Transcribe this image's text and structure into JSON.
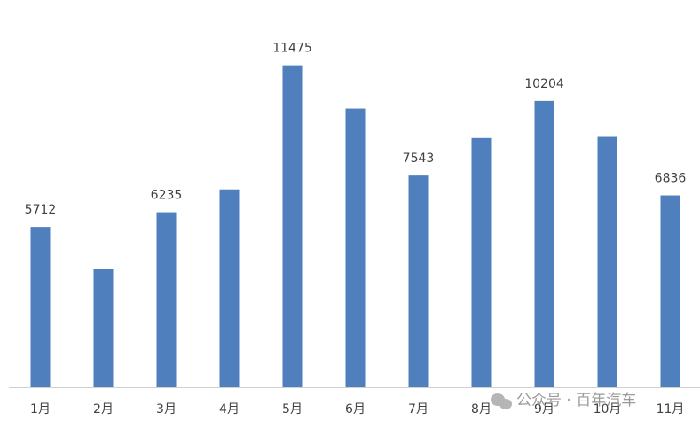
{
  "chart_data": {
    "type": "bar",
    "categories": [
      "1月",
      "2月",
      "3月",
      "4月",
      "5月",
      "6月",
      "7月",
      "8月",
      "9月",
      "10月",
      "11月"
    ],
    "values": [
      5712,
      4200,
      6235,
      7050,
      11475,
      9930,
      7543,
      8880,
      10204,
      8920,
      6836
    ],
    "value_labels": [
      "5712",
      null,
      "6235",
      null,
      "11475",
      null,
      "7543",
      null,
      "10204",
      null,
      "6836"
    ],
    "color": "#4f7fbd",
    "ylim": [
      0,
      13800
    ]
  },
  "watermark": "公众号 · 百年汽车"
}
